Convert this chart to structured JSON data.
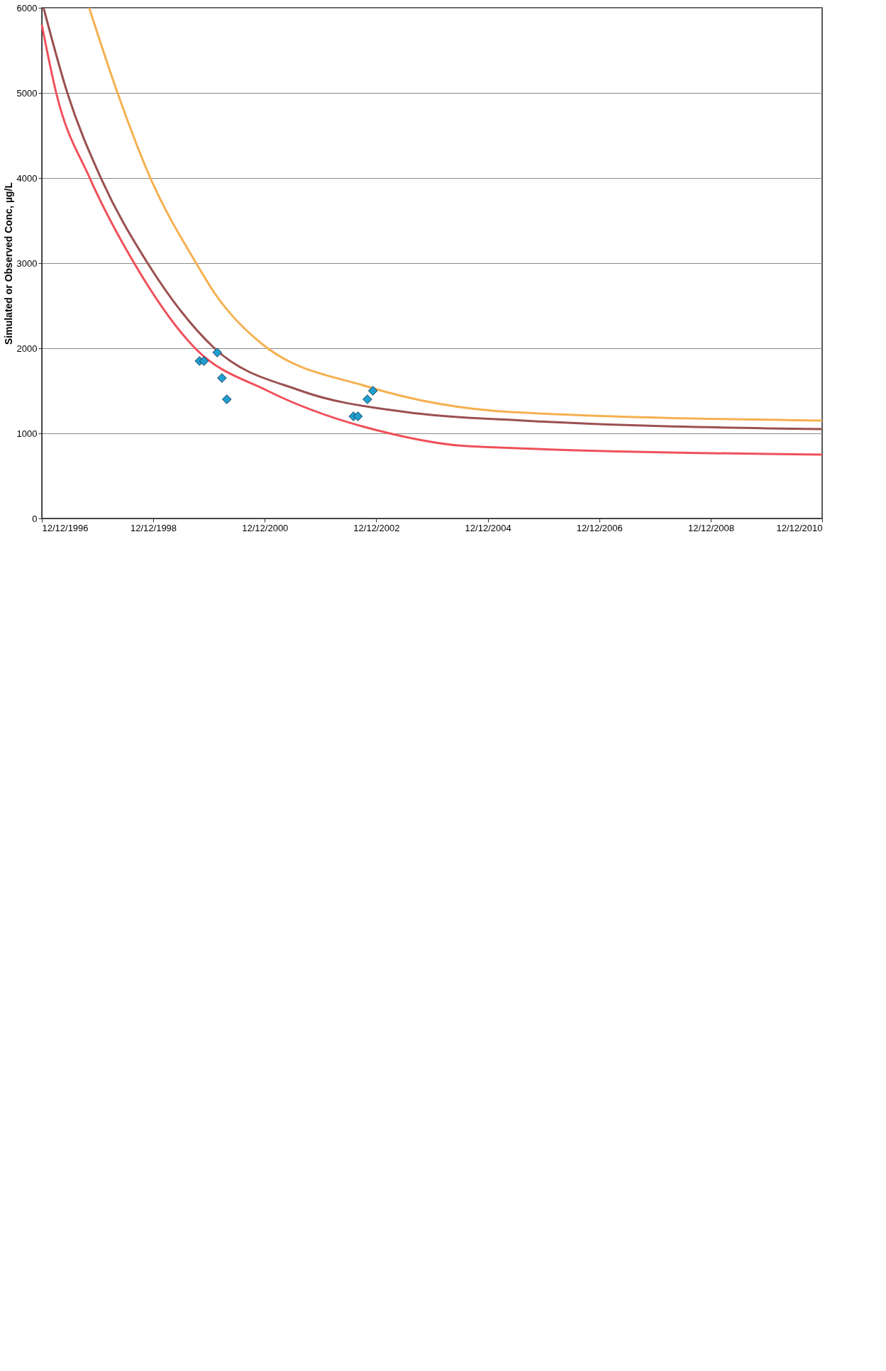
{
  "chart_data": {
    "type": "line",
    "ylabel": "Simulated or Observed Conc, µg/L",
    "xlim": [
      "1996-12-12",
      "2010-12-12"
    ],
    "xticks": [
      {
        "value": "1996-12-12",
        "label": "12/12/1996"
      },
      {
        "value": "1998-12-12",
        "label": "12/12/1998"
      },
      {
        "value": "2000-12-12",
        "label": "12/12/2000"
      },
      {
        "value": "2002-12-12",
        "label": "12/12/2002"
      },
      {
        "value": "2004-12-12",
        "label": "12/12/2004"
      },
      {
        "value": "2006-12-12",
        "label": "12/12/2006"
      },
      {
        "value": "2008-12-12",
        "label": "12/12/2008"
      },
      {
        "value": "2010-12-12",
        "label": "12/12/2010"
      }
    ],
    "ylim": [
      0,
      6000
    ],
    "yticks": [
      0,
      1000,
      2000,
      3000,
      4000,
      5000,
      6000
    ],
    "grid": "y",
    "line_style": "solid",
    "series": [
      {
        "color": "#f5b050",
        "x": [
          "1997-10-18",
          "1998-04-22",
          "1998-11-23",
          "1999-09-19",
          "2000-01-17",
          "2000-11-24",
          "2002-10-15",
          "2005-05-18",
          "2010-12-12"
        ],
        "values": [
          6000,
          5000,
          4000,
          3000,
          2650,
          2050,
          1550,
          1250,
          1150
        ]
      },
      {
        "color": "#9b5050",
        "x": [
          "1996-12-23",
          "1997-05-28",
          "1998-01-03",
          "1998-11-05",
          "2000-01-17",
          "2001-08-06",
          "2003-06-26",
          "2005-07-30",
          "2010-12-12"
        ],
        "values": [
          6000,
          5000,
          4000,
          3000,
          2000,
          1500,
          1250,
          1150,
          1050
        ]
      },
      {
        "color": "#f0505a",
        "x": [
          "1996-12-12",
          "1997-03-16",
          "1997-10-22",
          "1998-08-09",
          "1999-09-12",
          "2000-12-30",
          "2003-03-09",
          "2004-08-02",
          "2010-12-12"
        ],
        "values": [
          5800,
          5000,
          4000,
          3000,
          2000,
          1500,
          1000,
          850,
          750
        ]
      },
      {
        "type": "scatter",
        "color": "#1f9fcf",
        "marker": "diamond",
        "x": [
          "1999-10-11",
          "1999-11-09",
          "2000-02-04",
          "2000-03-06",
          "2000-04-07",
          "2002-07-16",
          "2002-08-14",
          "2002-10-15",
          "2002-11-20"
        ],
        "values": [
          1850,
          1850,
          1950,
          1650,
          1400,
          1200,
          1200,
          1400,
          1500
        ]
      }
    ]
  }
}
